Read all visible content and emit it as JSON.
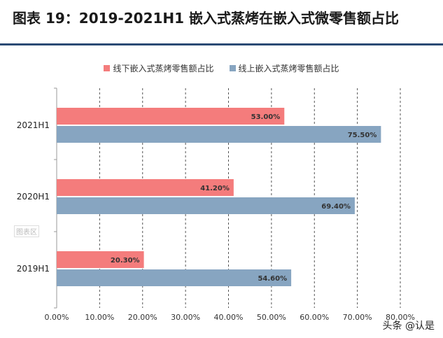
{
  "header": {
    "title": "图表 19：2019-2021H1 嵌入式蒸烤在嵌入式微零售额占比"
  },
  "chart_data": {
    "type": "bar",
    "orientation": "horizontal",
    "categories": [
      "2021H1",
      "2020H1",
      "2019H1"
    ],
    "series": [
      {
        "name": "线下嵌入式蒸烤零售额占比",
        "values": [
          53.0,
          41.2,
          20.3
        ],
        "labels": [
          "53.00%",
          "41.20%",
          "20.30%"
        ],
        "color": "#f47c7c"
      },
      {
        "name": "线上嵌入式蒸烤零售额占比",
        "values": [
          75.5,
          69.4,
          54.6
        ],
        "labels": [
          "75.50%",
          "69.40%",
          "54.60%"
        ],
        "color": "#87a5c1"
      }
    ],
    "xlim": [
      0,
      80
    ],
    "xticks": [
      "0.00%",
      "10.00%",
      "20.00%",
      "30.00%",
      "40.00%",
      "50.00%",
      "60.00%",
      "70.00%",
      "80.00%"
    ],
    "grid": "vertical-dashed",
    "legend_position": "top"
  },
  "overlay": {
    "plot_area_label": "图表区",
    "watermark": "头条 @认是"
  }
}
